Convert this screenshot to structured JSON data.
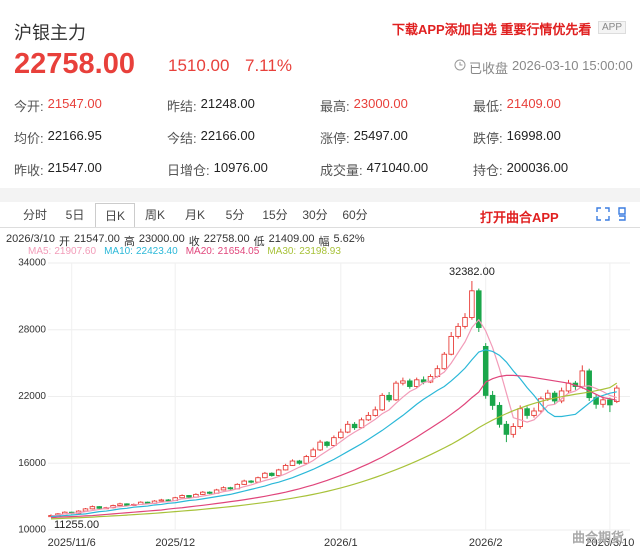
{
  "header": {
    "title": "沪银主力",
    "promo": "下载APP添加自选 重要行情优先看",
    "badge": "APP",
    "price": "22758.00",
    "change": "1510.00",
    "change_pct": "7.11%",
    "status": "已收盘",
    "time": "2026-03-10 15:00:00"
  },
  "stats": [
    {
      "label": "今开:",
      "value": "21547.00",
      "color": "#e8403b"
    },
    {
      "label": "昨结:",
      "value": "21248.00"
    },
    {
      "label": "最高:",
      "value": "23000.00",
      "color": "#e8403b"
    },
    {
      "label": "最低:",
      "value": "21409.00",
      "color": "#e8403b"
    },
    {
      "label": "均价:",
      "value": "22166.95"
    },
    {
      "label": "今结:",
      "value": "22166.00"
    },
    {
      "label": "涨停:",
      "value": "25497.00"
    },
    {
      "label": "跌停:",
      "value": "16998.00"
    },
    {
      "label": "昨收:",
      "value": "21547.00"
    },
    {
      "label": "日增仓:",
      "value": "10976.00"
    },
    {
      "label": "成交量:",
      "value": "471040.00"
    },
    {
      "label": "持仓:",
      "value": "200036.00"
    }
  ],
  "tabs": [
    "分时",
    "5日",
    "日K",
    "周K",
    "月K",
    "5分",
    "15分",
    "30分",
    "60分"
  ],
  "active_tab": 2,
  "open_app": "打开曲合APP",
  "info": {
    "date": "2026/3/10",
    "items": [
      {
        "label": "开",
        "value": "21547.00"
      },
      {
        "label": "高",
        "value": "23000.00"
      },
      {
        "label": "收",
        "value": "22758.00"
      },
      {
        "label": "低",
        "value": "21409.00"
      },
      {
        "label": "幅",
        "value": "5.62%"
      }
    ]
  },
  "watermark": "曲合期货",
  "chart_data": {
    "type": "candlestick",
    "up_color": "#e8403b",
    "down_color": "#1aa64a",
    "grid": true,
    "ylim": [
      10000,
      34000
    ],
    "yticks": [
      10000,
      16000,
      22000,
      28000,
      34000
    ],
    "max_label": "32382.00",
    "min_label": "11255.00",
    "categories": [
      null,
      null,
      null,
      "2025/11/6",
      null,
      null,
      null,
      null,
      null,
      null,
      null,
      null,
      null,
      null,
      null,
      null,
      null,
      null,
      "2025/12",
      null,
      null,
      null,
      null,
      null,
      null,
      null,
      null,
      null,
      null,
      null,
      null,
      null,
      null,
      null,
      null,
      null,
      null,
      null,
      null,
      null,
      null,
      null,
      "2026/1",
      null,
      null,
      null,
      null,
      null,
      null,
      null,
      null,
      null,
      null,
      null,
      null,
      null,
      null,
      null,
      null,
      null,
      null,
      null,
      null,
      "2026/2",
      null,
      null,
      null,
      null,
      null,
      null,
      null,
      null,
      null,
      null,
      null,
      null,
      null,
      null,
      null,
      null,
      null,
      "2026/3/10",
      null
    ],
    "open": [
      11200,
      11300,
      11450,
      11600,
      11500,
      11700,
      11900,
      12100,
      11950,
      12000,
      12200,
      12350,
      12200,
      12300,
      12500,
      12400,
      12600,
      12700,
      12650,
      12900,
      13100,
      12950,
      13200,
      13400,
      13300,
      13600,
      13800,
      13700,
      14100,
      14400,
      14300,
      14700,
      15100,
      14900,
      15400,
      15800,
      16200,
      16000,
      16600,
      17200,
      17900,
      17600,
      18300,
      18800,
      19500,
      19200,
      19900,
      20300,
      20800,
      22100,
      21700,
      23200,
      23400,
      22900,
      23500,
      23300,
      23800,
      24500,
      25800,
      27400,
      28300,
      29100,
      31500,
      26500,
      22100,
      21200,
      19500,
      18600,
      19300,
      20900,
      20300,
      20700,
      21800,
      22300,
      21600,
      22500,
      23200,
      22900,
      24300,
      21900,
      21300,
      21700,
      21547
    ],
    "high": [
      11400,
      11520,
      11680,
      11650,
      11780,
      11980,
      12200,
      12150,
      12080,
      12280,
      12450,
      12400,
      12380,
      12580,
      12550,
      12680,
      12800,
      12780,
      12980,
      13200,
      13150,
      13300,
      13500,
      13480,
      13700,
      13920,
      13880,
      14200,
      14520,
      14480,
      14800,
      15220,
      15180,
      15500,
      15950,
      16350,
      16300,
      16750,
      17400,
      18100,
      18000,
      18500,
      19100,
      19800,
      19700,
      20100,
      20600,
      21100,
      22300,
      22400,
      23400,
      23700,
      23600,
      23700,
      23800,
      24000,
      24800,
      26000,
      27800,
      28600,
      29500,
      32382,
      31700,
      26800,
      22500,
      21500,
      19800,
      19600,
      21200,
      21100,
      21000,
      22000,
      22600,
      22500,
      22800,
      23500,
      23400,
      24800,
      24500,
      22200,
      22000,
      21900,
      23000
    ],
    "low": [
      11255,
      11280,
      11400,
      11420,
      11460,
      11650,
      11850,
      11880,
      11900,
      11950,
      12150,
      12120,
      12150,
      12250,
      12330,
      12350,
      12550,
      12580,
      12600,
      12850,
      12880,
      12900,
      13150,
      13220,
      13250,
      13550,
      13620,
      13650,
      14050,
      14200,
      14250,
      14650,
      14800,
      14850,
      15350,
      15750,
      15880,
      15950,
      16550,
      17100,
      17400,
      17500,
      18200,
      18700,
      19000,
      19100,
      19800,
      20200,
      20700,
      21500,
      21600,
      23000,
      22700,
      22800,
      23100,
      23200,
      23700,
      24400,
      25700,
      27200,
      28100,
      28900,
      27800,
      21800,
      20800,
      19200,
      17900,
      18300,
      19100,
      20000,
      20100,
      20500,
      21600,
      21300,
      21400,
      22300,
      22600,
      22700,
      21600,
      20900,
      21000,
      20600,
      21409
    ],
    "close": [
      11300,
      11450,
      11600,
      11500,
      11700,
      11900,
      12100,
      11950,
      12000,
      12200,
      12350,
      12200,
      12300,
      12500,
      12400,
      12600,
      12700,
      12650,
      12900,
      13100,
      12950,
      13200,
      13400,
      13300,
      13600,
      13800,
      13700,
      14100,
      14400,
      14300,
      14700,
      15100,
      14900,
      15400,
      15800,
      16200,
      16000,
      16600,
      17200,
      17900,
      17600,
      18300,
      18800,
      19500,
      19200,
      19900,
      20300,
      20800,
      22100,
      21700,
      23200,
      23400,
      22900,
      23500,
      23300,
      23800,
      24500,
      25800,
      27400,
      28300,
      29100,
      31500,
      28200,
      22100,
      21200,
      19500,
      18600,
      19300,
      20900,
      20300,
      20700,
      21800,
      22300,
      21600,
      22500,
      23200,
      22900,
      24300,
      21900,
      21300,
      21700,
      21248,
      22758
    ],
    "series": [
      {
        "name": "MA5:",
        "color": "#f29bb8",
        "legend_value": "21907.60",
        "values": [
          11250,
          11350,
          11450,
          11500,
          11550,
          11650,
          11750,
          11850,
          11950,
          12050,
          12100,
          12150,
          12250,
          12300,
          12350,
          12400,
          12500,
          12550,
          12650,
          12800,
          12850,
          12950,
          13050,
          13150,
          13300,
          13450,
          13550,
          13700,
          13900,
          14050,
          14250,
          14450,
          14600,
          14800,
          15050,
          15350,
          15650,
          15900,
          16250,
          16700,
          17100,
          17500,
          17950,
          18400,
          18800,
          19150,
          19550,
          19950,
          20450,
          20800,
          21400,
          21950,
          22450,
          22750,
          23250,
          23400,
          23800,
          24200,
          25000,
          25950,
          26900,
          28200,
          28900,
          27900,
          26400,
          24500,
          22300,
          20100,
          19900,
          19700,
          19900,
          20500,
          21200,
          21300,
          21800,
          22300,
          22500,
          22900,
          22960,
          22720,
          22440,
          22100,
          21907.6
        ]
      },
      {
        "name": "MA10:",
        "color": "#2bb8d8",
        "legend_value": "22423.40",
        "values": [
          11200,
          11250,
          11300,
          11350,
          11400,
          11450,
          11550,
          11650,
          11700,
          11800,
          11900,
          11950,
          12050,
          12100,
          12150,
          12250,
          12300,
          12400,
          12450,
          12550,
          12650,
          12700,
          12800,
          12900,
          13000,
          13100,
          13200,
          13350,
          13500,
          13650,
          13800,
          13950,
          14150,
          14300,
          14500,
          14700,
          14950,
          15200,
          15450,
          15750,
          16050,
          16350,
          16700,
          17050,
          17400,
          17750,
          18150,
          18550,
          18950,
          19400,
          19850,
          20300,
          20800,
          21300,
          21750,
          22150,
          22550,
          22900,
          23400,
          23950,
          24550,
          25300,
          26000,
          26200,
          26050,
          25700,
          25100,
          24300,
          23600,
          22800,
          22100,
          21300,
          20600,
          20200,
          20200,
          20300,
          20400,
          20900,
          21400,
          21900,
          22100,
          22300,
          22423.4
        ]
      },
      {
        "name": "MA20:",
        "color": "#e0457b",
        "legend_value": "21654.05",
        "values": [
          11100,
          11150,
          11180,
          11200,
          11230,
          11270,
          11300,
          11350,
          11400,
          11450,
          11500,
          11550,
          11600,
          11650,
          11700,
          11750,
          11800,
          11880,
          11950,
          12000,
          12080,
          12150,
          12220,
          12300,
          12380,
          12460,
          12550,
          12630,
          12720,
          12820,
          12920,
          13030,
          13150,
          13270,
          13400,
          13550,
          13700,
          13880,
          14050,
          14250,
          14450,
          14680,
          14900,
          15150,
          15400,
          15680,
          15950,
          16250,
          16550,
          16900,
          17250,
          17600,
          17980,
          18350,
          18750,
          19150,
          19550,
          19950,
          20400,
          20850,
          21350,
          21900,
          22400,
          23300,
          23600,
          23800,
          23900,
          23900,
          23850,
          23800,
          23700,
          23600,
          23500,
          23400,
          23300,
          23200,
          23000,
          22800,
          22500,
          22200,
          21900,
          21800,
          21654.05
        ]
      },
      {
        "name": "MA30:",
        "color": "#a8c23a",
        "legend_value": "23198.93",
        "values": [
          11000,
          11020,
          11050,
          11080,
          11100,
          11130,
          11160,
          11200,
          11230,
          11270,
          11300,
          11340,
          11380,
          11420,
          11460,
          11500,
          11550,
          11600,
          11650,
          11700,
          11750,
          11800,
          11860,
          11920,
          11980,
          12040,
          12100,
          12170,
          12240,
          12320,
          12400,
          12480,
          12570,
          12660,
          12760,
          12860,
          12970,
          13080,
          13200,
          13330,
          13470,
          13620,
          13780,
          13950,
          14130,
          14320,
          14520,
          14730,
          14950,
          15180,
          15420,
          15670,
          15930,
          16200,
          16480,
          16770,
          17070,
          17380,
          17700,
          18050,
          18420,
          18800,
          19200,
          19550,
          19880,
          20180,
          20460,
          20720,
          20960,
          21180,
          21380,
          21560,
          21720,
          21860,
          21980,
          22090,
          22200,
          22300,
          22400,
          22520,
          22650,
          22800,
          23198.93
        ]
      }
    ]
  }
}
